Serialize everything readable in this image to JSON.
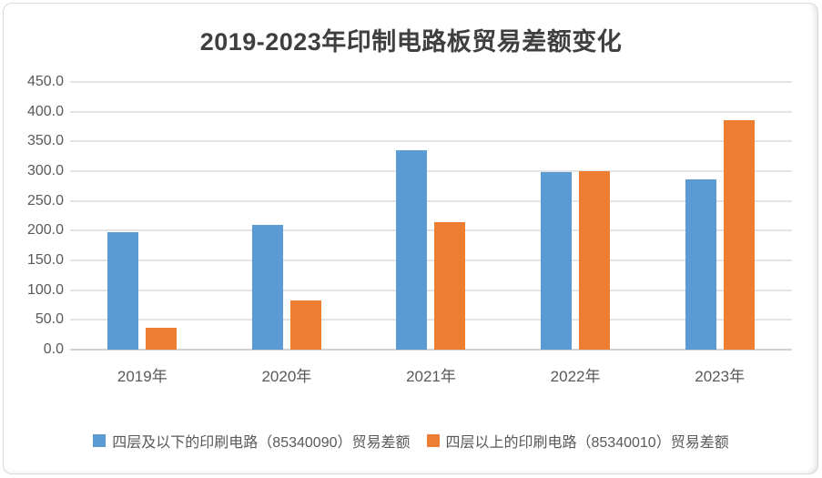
{
  "chart_data": {
    "type": "bar",
    "title": "2019-2023年印制电路板贸易差额变化",
    "categories": [
      "2019年",
      "2020年",
      "2021年",
      "2022年",
      "2023年"
    ],
    "series": [
      {
        "name": "四层及以下的印刷电路（85340090）贸易差额",
        "color": "#5B9BD5",
        "values": [
          197,
          210,
          335,
          298,
          286
        ]
      },
      {
        "name": "四层以上的印刷电路（85340010）贸易差额",
        "color": "#ED7D31",
        "values": [
          36,
          82,
          215,
          300,
          385
        ]
      }
    ],
    "xlabel": "",
    "ylabel": "",
    "ylim": [
      0,
      450
    ],
    "ytick_step": 50,
    "ytick_decimals": 1,
    "grid": true,
    "legend_position": "bottom"
  },
  "colors": {
    "series_blue": "#5B9BD5",
    "series_orange": "#ED7D31",
    "axis_text": "#595959",
    "title_text": "#3f3f3f",
    "gridline": "#e4e4e4",
    "border": "#d9d9d9"
  }
}
